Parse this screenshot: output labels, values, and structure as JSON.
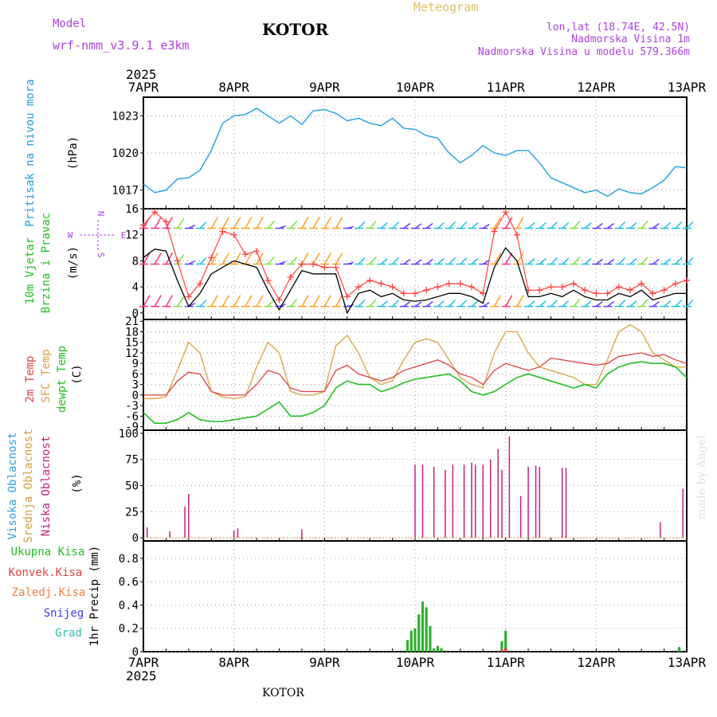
{
  "header": {
    "model_label": "Model",
    "model_name": "wrf-nmm_v3.9.1  e3km",
    "station": "KOTOR",
    "product": "Meteogram",
    "lonlat": "lon,lat (18.74E, 42.5N)",
    "elevation": "Nadmorska Visina 1m",
    "model_elevation": "Nadmorska Visina u modelu 579.366m",
    "year": "2025",
    "footer_station": "KOTOR",
    "credit": "made by Angel"
  },
  "colors": {
    "magenta_text": "#b040e0",
    "gold": "#e0c060",
    "pressure": "#1ea0e0",
    "temp2m": "#e04040",
    "sfc": "#d8a040",
    "dewpt": "#20c020",
    "cloud_high": "#30a0e0",
    "cloud_mid": "#d0a040",
    "cloud_low": "#c02080",
    "precip_total": "#30b030",
    "precip_conv": "#e04040",
    "precip_frozen": "#f08040",
    "snow": "#4040e0",
    "hail": "#30c0b0"
  },
  "chart_data": [
    {
      "type": "line",
      "title": "Pritisak na nivou mora",
      "ylabel": "(hPa)",
      "ylim": [
        1015.5,
        1024.5
      ],
      "yticks": [
        1017,
        1020,
        1023
      ],
      "x_start": "7APR",
      "x_ticks": [
        "7APR",
        "8APR",
        "9APR",
        "10APR",
        "11APR",
        "12APR",
        "13APR"
      ],
      "series": [
        {
          "name": "Pritisak na nivou mora",
          "color": "#1ea0e0",
          "x_hours": [
            0,
            3,
            6,
            9,
            12,
            15,
            18,
            21,
            24,
            27,
            30,
            33,
            36,
            39,
            42,
            45,
            48,
            51,
            54,
            57,
            60,
            63,
            66,
            69,
            72,
            75,
            78,
            81,
            84,
            87,
            90,
            93,
            96,
            99,
            102,
            105,
            108,
            111,
            114,
            117,
            120,
            123,
            126,
            129,
            132,
            135,
            138,
            141,
            144
          ],
          "values": [
            1017.5,
            1016.8,
            1017.0,
            1017.9,
            1018.0,
            1018.6,
            1020.2,
            1022.4,
            1023.0,
            1023.1,
            1023.6,
            1023.0,
            1022.4,
            1023.0,
            1022.3,
            1023.4,
            1023.5,
            1023.2,
            1022.6,
            1022.8,
            1022.4,
            1022.2,
            1022.8,
            1022.0,
            1021.9,
            1021.4,
            1021.2,
            1020.0,
            1019.2,
            1019.8,
            1020.6,
            1020.0,
            1019.8,
            1020.2,
            1020.2,
            1019.2,
            1018.0,
            1017.6,
            1017.2,
            1016.8,
            1017.0,
            1016.5,
            1017.1,
            1016.8,
            1016.7,
            1017.2,
            1017.8,
            1018.9,
            1018.8
          ]
        }
      ]
    },
    {
      "type": "line",
      "title": "10m Vjetar Brzina i Pravac",
      "ylabel": "(m/s)",
      "ylim": [
        -1,
        16
      ],
      "yticks": [
        0,
        4,
        8,
        12,
        16
      ],
      "compass": "W <-|-> E",
      "series": [
        {
          "name": "Brzina",
          "color": "#000000",
          "x_hours": [
            0,
            3,
            6,
            9,
            12,
            15,
            18,
            21,
            24,
            27,
            30,
            33,
            36,
            39,
            42,
            45,
            48,
            51,
            54,
            57,
            60,
            63,
            66,
            69,
            72,
            75,
            78,
            81,
            84,
            87,
            90,
            93,
            96,
            99,
            102,
            105,
            108,
            111,
            114,
            117,
            120,
            123,
            126,
            129,
            132,
            135,
            138,
            141,
            144
          ],
          "values": [
            8.5,
            9.8,
            9.5,
            5.0,
            1.0,
            3.0,
            6.0,
            7.0,
            8.0,
            7.5,
            7.0,
            3.5,
            0.5,
            3.5,
            6.5,
            6.0,
            6.0,
            6.0,
            0.0,
            3.0,
            3.5,
            2.5,
            3.0,
            2.0,
            1.8,
            2.0,
            2.5,
            3.0,
            3.0,
            2.5,
            1.5,
            7.0,
            10.0,
            8.0,
            2.5,
            2.5,
            3.0,
            2.5,
            3.5,
            2.5,
            2.0,
            2.0,
            3.0,
            2.5,
            3.5,
            2.0,
            2.5,
            3.0,
            3.0
          ]
        },
        {
          "name": "Udari",
          "color": "#ff4040",
          "x_hours": [
            0,
            3,
            6,
            9,
            12,
            15,
            18,
            21,
            24,
            27,
            30,
            33,
            36,
            39,
            42,
            45,
            48,
            51,
            54,
            57,
            60,
            63,
            66,
            69,
            72,
            75,
            78,
            81,
            84,
            87,
            90,
            93,
            96,
            99,
            102,
            105,
            108,
            111,
            114,
            117,
            120,
            123,
            126,
            129,
            132,
            135,
            138,
            141,
            144
          ],
          "values": [
            13.5,
            15.5,
            14.0,
            8.0,
            2.5,
            4.5,
            8.5,
            12.5,
            12.0,
            9.0,
            9.5,
            5.0,
            2.0,
            5.5,
            7.5,
            7.5,
            7.0,
            7.0,
            2.5,
            4.0,
            5.0,
            4.5,
            4.0,
            3.0,
            3.0,
            3.5,
            4.0,
            4.5,
            4.5,
            4.0,
            3.0,
            12.5,
            15.5,
            12.0,
            3.5,
            3.5,
            4.0,
            4.0,
            4.5,
            3.5,
            3.0,
            3.0,
            4.0,
            3.5,
            4.5,
            3.0,
            3.5,
            4.5,
            5.0
          ]
        }
      ]
    },
    {
      "type": "line",
      "title": "Temperature",
      "ylabel": "(C)",
      "ylim": [
        -10,
        21.5
      ],
      "yticks": [
        -9,
        -6,
        -3,
        0,
        3,
        6,
        9,
        12,
        15,
        18,
        21
      ],
      "series": [
        {
          "name": "2m Temp",
          "color": "#e04040",
          "x_hours": [
            0,
            3,
            6,
            9,
            12,
            15,
            18,
            21,
            24,
            27,
            30,
            33,
            36,
            39,
            42,
            45,
            48,
            51,
            54,
            57,
            60,
            63,
            66,
            69,
            72,
            75,
            78,
            81,
            84,
            87,
            90,
            93,
            96,
            99,
            102,
            105,
            108,
            111,
            114,
            117,
            120,
            123,
            126,
            129,
            132,
            135,
            138,
            141,
            144
          ],
          "values": [
            0,
            0,
            0,
            4,
            6.5,
            6,
            1,
            0,
            0,
            0,
            3,
            7,
            6,
            2,
            1,
            1,
            1,
            7,
            8.5,
            6,
            5,
            4,
            5,
            7,
            8,
            9,
            10,
            8.5,
            6,
            5,
            3,
            7,
            9,
            8,
            7,
            8,
            10.5,
            10,
            9.5,
            9,
            8.5,
            9,
            11,
            11.5,
            12,
            11,
            11.5,
            10,
            9
          ]
        },
        {
          "name": "SFC Temp",
          "color": "#d8a040",
          "x_hours": [
            0,
            3,
            6,
            9,
            12,
            15,
            18,
            21,
            24,
            27,
            30,
            33,
            36,
            39,
            42,
            45,
            48,
            51,
            54,
            57,
            60,
            63,
            66,
            69,
            72,
            75,
            78,
            81,
            84,
            87,
            90,
            93,
            96,
            99,
            102,
            105,
            108,
            111,
            114,
            117,
            120,
            123,
            126,
            129,
            132,
            135,
            138,
            141,
            144
          ],
          "values": [
            -1,
            -1,
            -0.5,
            7,
            15,
            12,
            1,
            -0.5,
            -1,
            -0.5,
            8,
            15,
            12,
            1,
            0,
            0,
            1,
            14,
            17,
            12,
            5,
            3,
            4,
            10,
            15,
            16,
            15,
            10,
            5,
            3,
            2,
            12,
            18,
            18,
            12,
            8,
            7,
            6,
            5,
            3,
            3,
            10,
            18,
            20,
            18,
            12,
            10,
            8,
            8
          ]
        },
        {
          "name": "dewpt Temp",
          "color": "#20c020",
          "x_hours": [
            0,
            3,
            6,
            9,
            12,
            15,
            18,
            21,
            24,
            27,
            30,
            33,
            36,
            39,
            42,
            45,
            48,
            51,
            54,
            57,
            60,
            63,
            66,
            69,
            72,
            75,
            78,
            81,
            84,
            87,
            90,
            93,
            96,
            99,
            102,
            105,
            108,
            111,
            114,
            117,
            120,
            123,
            126,
            129,
            132,
            135,
            138,
            141,
            144
          ],
          "values": [
            -5,
            -8,
            -8,
            -7,
            -5,
            -7,
            -7.5,
            -7.5,
            -7,
            -6.5,
            -6,
            -4,
            -2,
            -6,
            -6,
            -5,
            -3,
            2,
            4,
            3,
            3,
            1,
            2,
            3.5,
            4.5,
            5,
            5.5,
            6,
            4,
            1,
            0,
            1,
            3,
            5,
            6,
            5,
            4,
            3,
            2,
            3,
            2,
            6,
            8,
            9,
            9.5,
            9,
            9,
            8,
            5
          ]
        }
      ]
    },
    {
      "type": "bar",
      "title": "Oblacnost",
      "ylabel": "(%)",
      "ylim": [
        -3,
        103
      ],
      "yticks": [
        0,
        25,
        50,
        75,
        100
      ],
      "series": [
        {
          "name": "Visoka Oblacnost",
          "color": "#30a0e0",
          "x_hours": [],
          "values": []
        },
        {
          "name": "Srednja Oblacnost",
          "color": "#d0a040",
          "x_hours": [],
          "values": []
        },
        {
          "name": "Niska Oblacnost",
          "color": "#c02080",
          "x_hours": [
            1,
            7,
            11,
            12,
            24,
            25,
            42,
            72,
            74,
            77,
            80,
            82,
            85,
            87,
            88,
            90,
            92,
            94,
            95,
            97,
            100,
            102,
            104,
            105,
            111,
            112,
            137,
            143
          ],
          "values": [
            10,
            6,
            30,
            42,
            7,
            9,
            8,
            70,
            70,
            68,
            65,
            70,
            70,
            72,
            70,
            70,
            75,
            85,
            65,
            97,
            40,
            68,
            69,
            68,
            67,
            67,
            15,
            47
          ]
        }
      ]
    },
    {
      "type": "bar",
      "title": "1hr Precip",
      "ylabel": "(mm)",
      "ylim": [
        0,
        0.95
      ],
      "yticks": [
        0,
        0.2,
        0.4,
        0.6,
        0.8
      ],
      "series": [
        {
          "name": "Ukupna Kisa",
          "color": "#30b030",
          "x_hours": [
            70,
            71,
            72,
            73,
            74,
            75,
            76,
            77,
            78,
            79,
            80,
            81,
            82,
            83,
            84,
            85,
            86,
            87,
            88,
            89,
            90,
            91,
            92,
            93,
            94,
            95,
            96,
            97,
            98,
            142
          ],
          "values": [
            0.1,
            0.18,
            0.2,
            0.32,
            0.43,
            0.38,
            0.22,
            0.03,
            0.05,
            0.03,
            0.0,
            0.0,
            0.0,
            0.0,
            0.0,
            0.0,
            0.0,
            0.0,
            0.0,
            0.0,
            0.0,
            0.0,
            0.0,
            0.0,
            0.0,
            0.09,
            0.18,
            0.0,
            0.0,
            0.04
          ]
        },
        {
          "name": "Konvek.Kisa",
          "color": "#e04040",
          "x_hours": [
            95,
            96
          ],
          "values": [
            0.02,
            0.03
          ]
        },
        {
          "name": "Zaledj.Kisa",
          "color": "#f08040",
          "x_hours": [],
          "values": []
        },
        {
          "name": "Snijeg",
          "color": "#4040e0",
          "x_hours": [],
          "values": []
        },
        {
          "name": "Grad",
          "color": "#30c0b0",
          "x_hours": [],
          "values": []
        }
      ]
    }
  ],
  "panels": {
    "pressure": {
      "label": "Pritisak na nivou mora",
      "unit": "(hPa)"
    },
    "wind": {
      "label1": "10m Vjetar",
      "label2": "Brzina i Pravac",
      "unit": "(m/s)",
      "compass_w": "W",
      "compass_e": "E",
      "compass_n": "N",
      "compass_s": "S"
    },
    "temp": {
      "label1": "2m Temp",
      "label2": "SFC Temp",
      "label3": "dewpt Temp",
      "unit": "(C)"
    },
    "cloud": {
      "label1": "Visoka Oblacnost",
      "label2": "Srednja Oblacnost",
      "label3": "Niska Oblacnost",
      "unit": "(%)"
    },
    "precip": {
      "labels": [
        "Ukupna Kisa",
        "Konvek.Kisa",
        "Zaledj.Kisa",
        "Snijeg",
        "Grad"
      ],
      "axis_title": "1hr Precip (mm)"
    }
  }
}
